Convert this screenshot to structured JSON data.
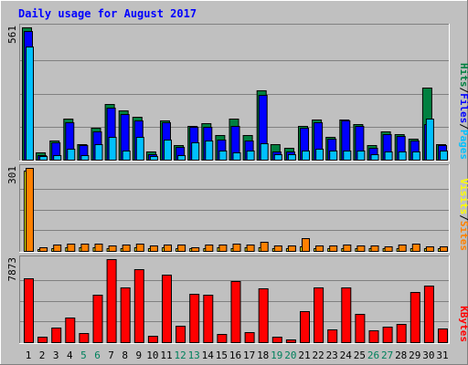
{
  "chart_data": [
    {
      "type": "bar",
      "title": "Daily usage for August 2017",
      "max_label": "561",
      "right_labels": [
        {
          "text": "Pages",
          "color": "#00c0ff"
        },
        {
          "text": "Files",
          "color": "#0000ff"
        },
        {
          "text": "Hits",
          "color": "#008040"
        }
      ],
      "ylim": [
        0,
        561
      ],
      "categories": [
        "1",
        "2",
        "3",
        "4",
        "5",
        "6",
        "7",
        "8",
        "9",
        "10",
        "11",
        "12",
        "13",
        "14",
        "15",
        "16",
        "17",
        "18",
        "19",
        "20",
        "21",
        "22",
        "23",
        "24",
        "25",
        "26",
        "27",
        "28",
        "29",
        "30",
        "31"
      ],
      "series": [
        {
          "name": "Hits",
          "color": "#008040",
          "values": [
            561,
            30,
            80,
            175,
            65,
            135,
            235,
            210,
            180,
            35,
            165,
            60,
            145,
            155,
            105,
            175,
            105,
            295,
            65,
            50,
            145,
            170,
            95,
            170,
            150,
            60,
            120,
            110,
            90,
            305,
            65
          ]
        },
        {
          "name": "Files",
          "color": "#0000ff",
          "values": [
            545,
            20,
            75,
            160,
            60,
            120,
            220,
            195,
            165,
            25,
            160,
            55,
            140,
            140,
            85,
            145,
            80,
            275,
            35,
            35,
            135,
            160,
            90,
            165,
            145,
            50,
            110,
            100,
            80,
            150,
            60
          ]
        },
        {
          "name": "Pages",
          "color": "#00c0ff",
          "values": [
            480,
            15,
            20,
            45,
            20,
            65,
            95,
            40,
            95,
            15,
            85,
            20,
            75,
            80,
            40,
            30,
            40,
            70,
            25,
            25,
            40,
            45,
            40,
            40,
            40,
            25,
            35,
            35,
            35,
            175,
            40
          ]
        }
      ]
    },
    {
      "type": "bar",
      "max_label": "301",
      "right_labels": [
        {
          "text": "Sites",
          "color": "#ff8000"
        },
        {
          "text": "Visits",
          "color": "#ffff00"
        }
      ],
      "ylim": [
        0,
        301
      ],
      "categories": [
        "1",
        "2",
        "3",
        "4",
        "5",
        "6",
        "7",
        "8",
        "9",
        "10",
        "11",
        "12",
        "13",
        "14",
        "15",
        "16",
        "17",
        "18",
        "19",
        "20",
        "21",
        "22",
        "23",
        "24",
        "25",
        "26",
        "27",
        "28",
        "29",
        "30",
        "31"
      ],
      "series": [
        {
          "name": "Visits",
          "color": "#ffff00",
          "values": [
            290,
            8,
            10,
            14,
            14,
            14,
            9,
            9,
            14,
            9,
            14,
            9,
            9,
            9,
            14,
            9,
            14,
            14,
            9,
            9,
            18,
            9,
            9,
            9,
            9,
            9,
            9,
            9,
            9,
            9,
            9
          ]
        },
        {
          "name": "Sites",
          "color": "#ff8000",
          "values": [
            301,
            12,
            22,
            28,
            28,
            28,
            20,
            22,
            28,
            20,
            24,
            22,
            12,
            22,
            24,
            28,
            24,
            32,
            20,
            20,
            45,
            20,
            20,
            22,
            20,
            20,
            18,
            22,
            26,
            18,
            16
          ]
        }
      ]
    },
    {
      "type": "bar",
      "max_label": "7873",
      "right_labels": [
        {
          "text": "KBytes",
          "color": "#ff0000"
        }
      ],
      "ylim": [
        0,
        7873
      ],
      "categories": [
        "1",
        "2",
        "3",
        "4",
        "5",
        "6",
        "7",
        "8",
        "9",
        "10",
        "11",
        "12",
        "13",
        "14",
        "15",
        "16",
        "17",
        "18",
        "19",
        "20",
        "21",
        "22",
        "23",
        "24",
        "25",
        "26",
        "27",
        "28",
        "29",
        "30",
        "31"
      ],
      "series": [
        {
          "name": "KBytes",
          "color": "#ff0000",
          "values": [
            6050,
            520,
            1350,
            2350,
            830,
            4480,
            7873,
            5200,
            6900,
            620,
            6400,
            1590,
            4600,
            4500,
            820,
            5800,
            920,
            5080,
            520,
            260,
            2900,
            5200,
            1230,
            5200,
            2700,
            1090,
            1460,
            1690,
            4800,
            5400,
            1260
          ]
        }
      ]
    }
  ],
  "day_labels": [
    {
      "text": "1",
      "color": "#000000"
    },
    {
      "text": "2",
      "color": "#000000"
    },
    {
      "text": "3",
      "color": "#000000"
    },
    {
      "text": "4",
      "color": "#000000"
    },
    {
      "text": "5",
      "color": "#00805c"
    },
    {
      "text": "6",
      "color": "#00805c"
    },
    {
      "text": "7",
      "color": "#000000"
    },
    {
      "text": "8",
      "color": "#000000"
    },
    {
      "text": "9",
      "color": "#000000"
    },
    {
      "text": "10",
      "color": "#000000"
    },
    {
      "text": "11",
      "color": "#000000"
    },
    {
      "text": "12",
      "color": "#00805c"
    },
    {
      "text": "13",
      "color": "#00805c"
    },
    {
      "text": "14",
      "color": "#000000"
    },
    {
      "text": "15",
      "color": "#000000"
    },
    {
      "text": "16",
      "color": "#000000"
    },
    {
      "text": "17",
      "color": "#000000"
    },
    {
      "text": "18",
      "color": "#000000"
    },
    {
      "text": "19",
      "color": "#00805c"
    },
    {
      "text": "20",
      "color": "#00805c"
    },
    {
      "text": "21",
      "color": "#000000"
    },
    {
      "text": "22",
      "color": "#000000"
    },
    {
      "text": "23",
      "color": "#000000"
    },
    {
      "text": "24",
      "color": "#000000"
    },
    {
      "text": "25",
      "color": "#000000"
    },
    {
      "text": "26",
      "color": "#00805c"
    },
    {
      "text": "27",
      "color": "#00805c"
    },
    {
      "text": "28",
      "color": "#000000"
    },
    {
      "text": "29",
      "color": "#000000"
    },
    {
      "text": "30",
      "color": "#000000"
    },
    {
      "text": "31",
      "color": "#000000"
    }
  ],
  "colors": {
    "background": "#c0c0c0",
    "title": "#0000ff",
    "grid": "#808080",
    "outline": "#000000"
  }
}
